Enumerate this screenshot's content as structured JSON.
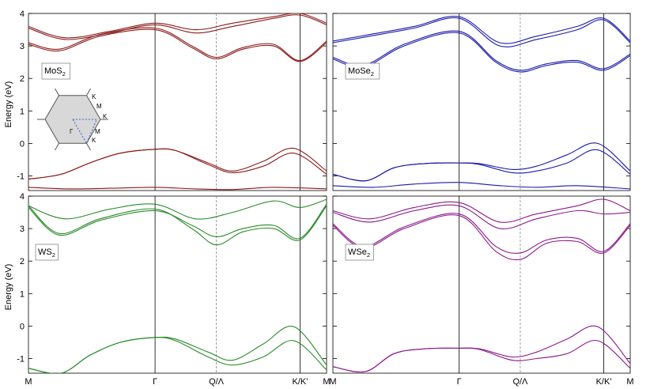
{
  "chart_data": {
    "type": "line",
    "y_axis_label": "Energy (eV)",
    "ylim": [
      -1.45,
      4.0
    ],
    "y_ticks": [
      "-1",
      "0",
      "1",
      "2",
      "3",
      "4"
    ],
    "x_ticks": [
      "M",
      "Γ",
      "Q/Λ",
      "K/K'",
      "M"
    ],
    "grid": false,
    "panels": [
      {
        "id": "MoS2",
        "label_main": "MoS",
        "label_sub": "2",
        "color": "#8b1a1a",
        "series": [
          {
            "x": [
              0,
              0.16,
              0.3,
              0.45,
              0.62,
              0.72,
              0.88,
              1.0,
              1.15,
              1.3,
              1.46
            ],
            "y": [
              -1.1,
              -0.95,
              -0.6,
              -0.3,
              -0.18,
              -0.22,
              -0.6,
              -0.85,
              -0.55,
              -0.15,
              -0.85
            ]
          },
          {
            "x": [
              0,
              0.16,
              0.3,
              0.45,
              0.62,
              0.72,
              0.88,
              1.0,
              1.15,
              1.3,
              1.46
            ],
            "y": [
              -1.1,
              -0.95,
              -0.6,
              -0.3,
              -0.18,
              -0.22,
              -0.65,
              -0.9,
              -0.7,
              -0.3,
              -0.95
            ]
          },
          {
            "x": [
              0,
              0.2,
              0.4,
              0.62,
              0.82,
              1.0,
              1.2,
              1.46
            ],
            "y": [
              -1.35,
              -1.4,
              -1.38,
              -1.35,
              -1.4,
              -1.42,
              -1.35,
              -1.4
            ]
          },
          {
            "x": [
              0,
              0.15,
              0.35,
              0.62,
              0.8,
              0.92,
              1.05,
              1.2,
              1.33,
              1.46
            ],
            "y": [
              3.05,
              2.85,
              3.3,
              3.5,
              2.95,
              2.6,
              2.9,
              3.0,
              2.52,
              3.1
            ]
          },
          {
            "x": [
              0,
              0.15,
              0.35,
              0.62,
              0.8,
              0.92,
              1.05,
              1.2,
              1.33,
              1.46
            ],
            "y": [
              3.1,
              2.9,
              3.35,
              3.55,
              3.0,
              2.65,
              2.95,
              3.05,
              2.55,
              3.15
            ]
          },
          {
            "x": [
              0,
              0.18,
              0.4,
              0.62,
              0.82,
              1.0,
              1.2,
              1.33,
              1.46
            ],
            "y": [
              3.55,
              3.2,
              3.4,
              3.65,
              3.4,
              3.6,
              3.85,
              3.95,
              3.65
            ]
          },
          {
            "x": [
              0,
              0.18,
              0.4,
              0.62,
              0.82,
              1.0,
              1.2,
              1.33,
              1.46
            ],
            "y": [
              3.6,
              3.25,
              3.45,
              3.7,
              3.5,
              3.7,
              3.9,
              4.0,
              3.7
            ]
          }
        ]
      },
      {
        "id": "MoSe2",
        "label_main": "MoSe",
        "label_sub": "2",
        "color": "#1a1aa8",
        "series": [
          {
            "x": [
              0,
              0.16,
              0.3,
              0.45,
              0.62,
              0.72,
              0.88,
              1.0,
              1.15,
              1.3,
              1.46
            ],
            "y": [
              -0.95,
              -1.15,
              -0.75,
              -0.62,
              -0.6,
              -0.62,
              -0.8,
              -0.7,
              -0.35,
              0.0,
              -0.85
            ]
          },
          {
            "x": [
              0,
              0.16,
              0.3,
              0.45,
              0.62,
              0.72,
              0.88,
              1.0,
              1.15,
              1.3,
              1.46
            ],
            "y": [
              -0.95,
              -1.15,
              -0.75,
              -0.62,
              -0.6,
              -0.65,
              -0.9,
              -0.85,
              -0.6,
              -0.2,
              -0.95
            ]
          },
          {
            "x": [
              0,
              0.2,
              0.4,
              0.62,
              0.82,
              1.0,
              1.2,
              1.46
            ],
            "y": [
              -1.3,
              -1.35,
              -1.25,
              -1.2,
              -1.3,
              -1.35,
              -1.3,
              -1.4
            ]
          },
          {
            "x": [
              0,
              0.15,
              0.35,
              0.62,
              0.8,
              0.92,
              1.05,
              1.2,
              1.33,
              1.46
            ],
            "y": [
              2.6,
              2.35,
              3.0,
              3.4,
              2.5,
              2.2,
              2.4,
              2.5,
              2.25,
              2.7
            ]
          },
          {
            "x": [
              0,
              0.15,
              0.35,
              0.62,
              0.8,
              0.92,
              1.05,
              1.2,
              1.33,
              1.46
            ],
            "y": [
              2.65,
              2.4,
              3.05,
              3.45,
              2.55,
              2.25,
              2.45,
              2.55,
              2.3,
              2.75
            ]
          },
          {
            "x": [
              0,
              0.18,
              0.4,
              0.62,
              0.82,
              1.0,
              1.2,
              1.33,
              1.46
            ],
            "y": [
              3.1,
              3.3,
              3.55,
              3.85,
              3.0,
              3.2,
              3.5,
              3.8,
              3.1
            ]
          },
          {
            "x": [
              0,
              0.18,
              0.4,
              0.62,
              0.82,
              1.0,
              1.2,
              1.33,
              1.46
            ],
            "y": [
              3.15,
              3.35,
              3.6,
              3.9,
              3.1,
              3.3,
              3.6,
              3.85,
              3.15
            ]
          }
        ]
      },
      {
        "id": "WS2",
        "label_main": "WS",
        "label_sub": "2",
        "color": "#2a8a2a",
        "series": [
          {
            "x": [
              0,
              0.16,
              0.3,
              0.45,
              0.62,
              0.72,
              0.88,
              1.0,
              1.15,
              1.3,
              1.46
            ],
            "y": [
              -1.3,
              -1.45,
              -0.9,
              -0.5,
              -0.35,
              -0.4,
              -0.8,
              -1.05,
              -0.55,
              -0.02,
              -1.2
            ]
          },
          {
            "x": [
              0,
              0.16,
              0.3,
              0.45,
              0.62,
              0.72,
              0.88,
              1.0,
              1.15,
              1.3,
              1.46
            ],
            "y": [
              -1.3,
              -1.45,
              -0.9,
              -0.5,
              -0.35,
              -0.45,
              -0.95,
              -1.2,
              -0.95,
              -0.45,
              -1.35
            ]
          },
          {
            "x": [
              0,
              0.15,
              0.35,
              0.62,
              0.8,
              0.92,
              1.05,
              1.2,
              1.33,
              1.46
            ],
            "y": [
              3.7,
              2.85,
              3.3,
              3.6,
              3.0,
              2.5,
              2.9,
              3.0,
              2.65,
              3.7
            ]
          },
          {
            "x": [
              0,
              0.15,
              0.35,
              0.62,
              0.8,
              0.92,
              1.05,
              1.2,
              1.33,
              1.46
            ],
            "y": [
              3.65,
              2.8,
              3.25,
              3.55,
              3.1,
              2.75,
              3.0,
              3.1,
              2.7,
              3.75
            ]
          },
          {
            "x": [
              0,
              0.18,
              0.4,
              0.62,
              0.82,
              1.0,
              1.2,
              1.33,
              1.46
            ],
            "y": [
              3.7,
              3.3,
              3.6,
              3.75,
              3.3,
              3.5,
              3.85,
              3.65,
              3.9
            ]
          }
        ]
      },
      {
        "id": "WSe2",
        "label_main": "WSe",
        "label_sub": "2",
        "color": "#8b1a8b",
        "series": [
          {
            "x": [
              0,
              0.16,
              0.3,
              0.45,
              0.62,
              0.72,
              0.88,
              1.0,
              1.15,
              1.3,
              1.46
            ],
            "y": [
              -1.25,
              -1.4,
              -0.85,
              -0.7,
              -0.68,
              -0.7,
              -0.95,
              -0.8,
              -0.4,
              -0.02,
              -1.15
            ]
          },
          {
            "x": [
              0,
              0.16,
              0.3,
              0.45,
              0.62,
              0.72,
              0.88,
              1.0,
              1.15,
              1.3,
              1.46
            ],
            "y": [
              -1.25,
              -1.4,
              -0.85,
              -0.7,
              -0.68,
              -0.72,
              -1.05,
              -1.0,
              -0.85,
              -0.45,
              -1.3
            ]
          },
          {
            "x": [
              0,
              0.15,
              0.35,
              0.62,
              0.8,
              0.92,
              1.05,
              1.2,
              1.33,
              1.46
            ],
            "y": [
              3.1,
              2.4,
              3.0,
              3.4,
              2.3,
              2.05,
              2.55,
              2.6,
              2.25,
              3.1
            ]
          },
          {
            "x": [
              0,
              0.15,
              0.35,
              0.62,
              0.8,
              0.92,
              1.05,
              1.2,
              1.33,
              1.46
            ],
            "y": [
              3.15,
              2.45,
              3.05,
              3.45,
              2.45,
              2.25,
              2.65,
              2.7,
              2.3,
              3.15
            ]
          },
          {
            "x": [
              0,
              0.18,
              0.4,
              0.62,
              0.82,
              1.0,
              1.2,
              1.33,
              1.46
            ],
            "y": [
              3.5,
              3.2,
              3.55,
              3.7,
              3.0,
              3.3,
              3.55,
              3.45,
              3.5
            ]
          },
          {
            "x": [
              0,
              0.18,
              0.4,
              0.62,
              0.82,
              1.0,
              1.2,
              1.33,
              1.46
            ],
            "y": [
              3.55,
              3.3,
              3.65,
              3.8,
              3.2,
              3.45,
              3.7,
              3.9,
              3.55
            ]
          }
        ]
      }
    ],
    "inset_labels": [
      "K",
      "M",
      "K",
      "Γ",
      "M",
      "K"
    ]
  }
}
